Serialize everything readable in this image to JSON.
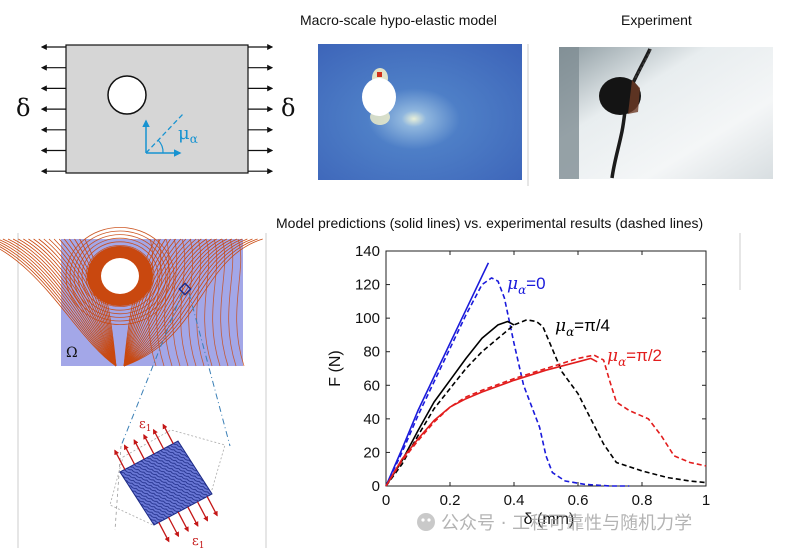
{
  "panels": {
    "schematic": {
      "delta_left": "δ",
      "delta_right": "δ",
      "mu_label": "μ",
      "mu_sub": "α"
    },
    "hypo_title": "Macro-scale hypo-elastic model",
    "experiment_title": "Experiment",
    "predictions_title": "Model predictions (solid lines) vs. experimental results (dashed lines)",
    "field_label": "Ω",
    "rve_label_top": "ε",
    "rve_label_bottom": "ε",
    "rve_sub": "1"
  },
  "chart_data": {
    "type": "line",
    "xlabel": "δ (mm)",
    "ylabel": "F (N)",
    "xlim": [
      0,
      1
    ],
    "ylim": [
      0,
      140
    ],
    "xticks": [
      "0",
      "0.2",
      "0.4",
      "0.6",
      "0.8",
      "1"
    ],
    "yticks": [
      "0",
      "20",
      "40",
      "60",
      "80",
      "100",
      "120",
      "140"
    ],
    "grid": false,
    "legend_placement": "inline",
    "series": [
      {
        "label_main": "μ",
        "label_sub": "α",
        "label_rest": "=0",
        "color": "#1a1adb",
        "style": "solid",
        "x": [
          0,
          0.05,
          0.1,
          0.15,
          0.2,
          0.25,
          0.3,
          0.32
        ],
        "y": [
          0,
          22,
          45,
          65,
          85,
          105,
          125,
          133
        ]
      },
      {
        "label_main": "μ",
        "label_sub": "α",
        "label_rest": "=0",
        "color": "#1a1adb",
        "style": "dashed",
        "x": [
          0,
          0.05,
          0.1,
          0.15,
          0.2,
          0.25,
          0.3,
          0.33,
          0.35,
          0.37,
          0.4,
          0.43,
          0.46,
          0.48,
          0.5,
          0.52,
          0.56,
          0.62,
          0.7,
          0.76
        ],
        "y": [
          0,
          20,
          42,
          62,
          82,
          102,
          120,
          124,
          122,
          112,
          85,
          60,
          45,
          35,
          18,
          8,
          3,
          1,
          0,
          0
        ]
      },
      {
        "label_main": "μ",
        "label_sub": "α",
        "label_rest": "=π/4",
        "color": "#000000",
        "style": "solid",
        "x": [
          0,
          0.05,
          0.1,
          0.15,
          0.2,
          0.25,
          0.3,
          0.35,
          0.38,
          0.4
        ],
        "y": [
          0,
          15,
          33,
          50,
          63,
          76,
          88,
          96,
          98,
          96
        ]
      },
      {
        "label_main": "μ",
        "label_sub": "α",
        "label_rest": "=π/4",
        "color": "#000000",
        "style": "dashed",
        "x": [
          0,
          0.05,
          0.1,
          0.15,
          0.2,
          0.25,
          0.3,
          0.35,
          0.4,
          0.44,
          0.47,
          0.49,
          0.51,
          0.55,
          0.6,
          0.64,
          0.68,
          0.72,
          0.8,
          0.88,
          0.95,
          1.0
        ],
        "y": [
          0,
          13,
          30,
          46,
          58,
          70,
          80,
          88,
          96,
          99,
          98,
          95,
          86,
          68,
          55,
          40,
          25,
          14,
          9,
          5,
          3,
          2
        ]
      },
      {
        "label_main": "μ",
        "label_sub": "α",
        "label_rest": "=π/2",
        "color": "#e21d1d",
        "style": "solid",
        "x": [
          0,
          0.05,
          0.1,
          0.15,
          0.2,
          0.25,
          0.3,
          0.4,
          0.5,
          0.6,
          0.64,
          0.66
        ],
        "y": [
          0,
          16,
          28,
          39,
          47,
          52,
          56,
          63,
          69,
          74,
          76,
          74
        ]
      },
      {
        "label_main": "μ",
        "label_sub": "α",
        "label_rest": "=π/2",
        "color": "#e21d1d",
        "style": "dashed",
        "x": [
          0,
          0.05,
          0.1,
          0.15,
          0.2,
          0.25,
          0.3,
          0.4,
          0.5,
          0.6,
          0.65,
          0.68,
          0.7,
          0.72,
          0.76,
          0.82,
          0.86,
          0.9,
          0.95,
          1.0
        ],
        "y": [
          0,
          15,
          27,
          38,
          47,
          53,
          57,
          64,
          70,
          76,
          78,
          75,
          62,
          50,
          45,
          40,
          30,
          18,
          14,
          12
        ]
      }
    ]
  },
  "watermark": {
    "text": "公众号 · 工程可靠性与随机力学"
  },
  "colors": {
    "field_bg": "#a3a7e8",
    "field_lines": "#c9480f",
    "plate_gray": "#d6d6d6",
    "accent_blue": "#1793d1"
  }
}
